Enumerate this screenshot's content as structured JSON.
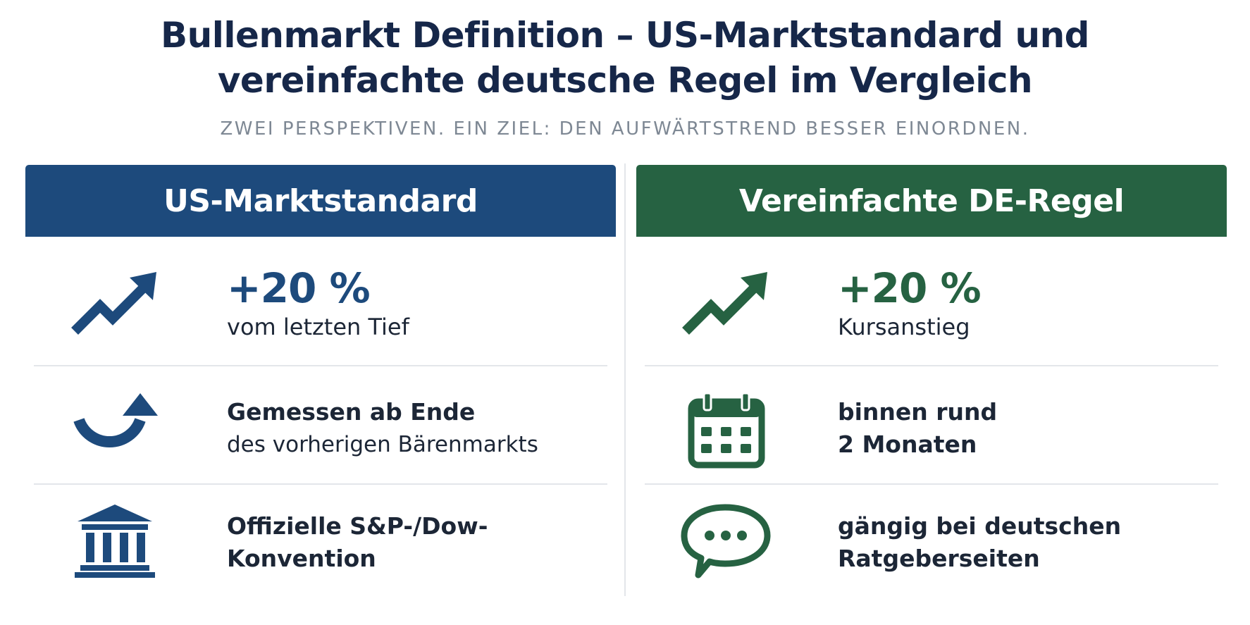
{
  "title": {
    "line1": "Bullenmarkt Definition – US-Marktstandard und",
    "line2": "vereinfachte deutsche Regel im Vergleich"
  },
  "subtitle": "ZWEI PERSPEKTIVEN. EIN ZIEL: DEN AUFWÄRTSTREND BESSER EINORDNEN.",
  "colors": {
    "us_accent": "#1d4a7c",
    "de_accent": "#266242"
  },
  "us": {
    "header": "US-Marktstandard",
    "row1": {
      "icon": "trend-up-arrow-icon",
      "big": "+20 %",
      "sub": "vom letzten Tief"
    },
    "row2": {
      "icon": "rebound-arrow-icon",
      "line1": "Gemessen ab Ende",
      "line2": "des vorherigen Bärenmarkts"
    },
    "row3": {
      "icon": "bank-building-icon",
      "line1": "Offizielle S&P-/Dow-",
      "line2": "Konvention"
    }
  },
  "de": {
    "header": "Vereinfachte DE-Regel",
    "row1": {
      "icon": "trend-up-arrow-icon",
      "big": "+20 %",
      "sub": "Kursanstieg"
    },
    "row2": {
      "icon": "calendar-icon",
      "line1": "binnen rund",
      "line2": "2 Monaten"
    },
    "row3": {
      "icon": "speech-bubble-icon",
      "line1": "gängig bei deutschen",
      "line2": "Ratgeberseiten"
    }
  }
}
